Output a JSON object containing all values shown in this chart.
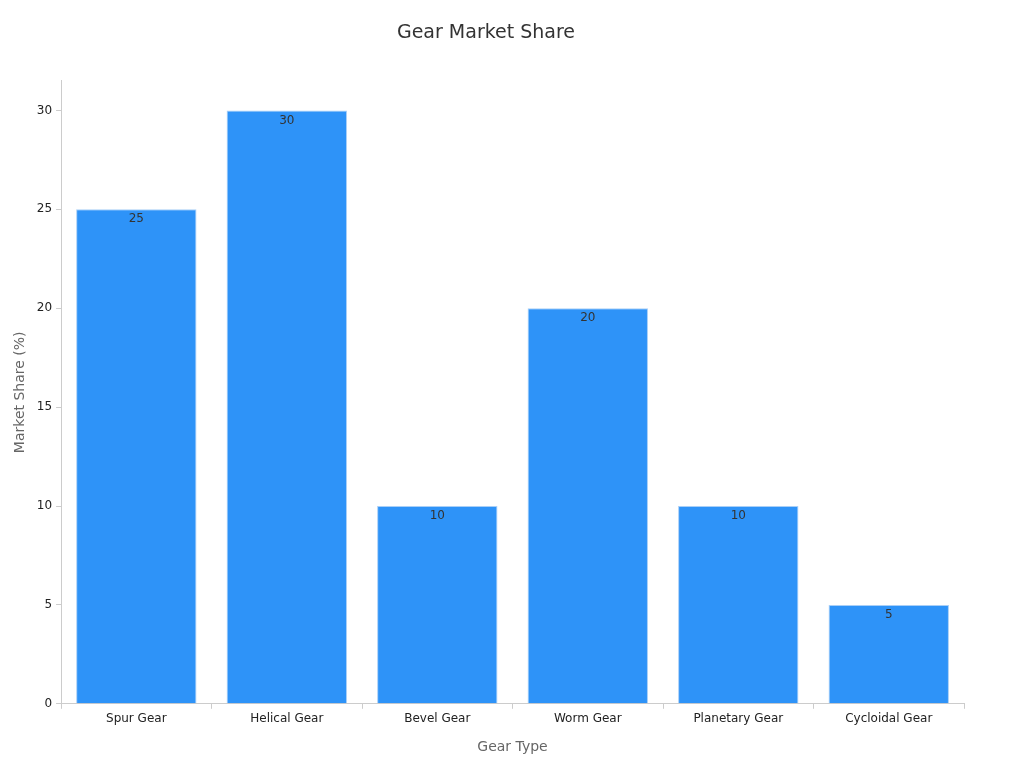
{
  "chart_data": {
    "type": "bar",
    "title": "Gear Market Share",
    "xlabel": "Gear Type",
    "ylabel": "Market Share (%)",
    "categories": [
      "Spur Gear",
      "Helical Gear",
      "Bevel Gear",
      "Worm Gear",
      "Planetary Gear",
      "Cycloidal Gear"
    ],
    "values": [
      25,
      30,
      10,
      20,
      10,
      5
    ],
    "color": "#2e93f8",
    "ylim": [
      0,
      31.5
    ],
    "yticks": [
      0,
      5,
      10,
      15,
      20,
      25,
      30
    ],
    "grid": false,
    "legend": false,
    "data_labels": true
  }
}
